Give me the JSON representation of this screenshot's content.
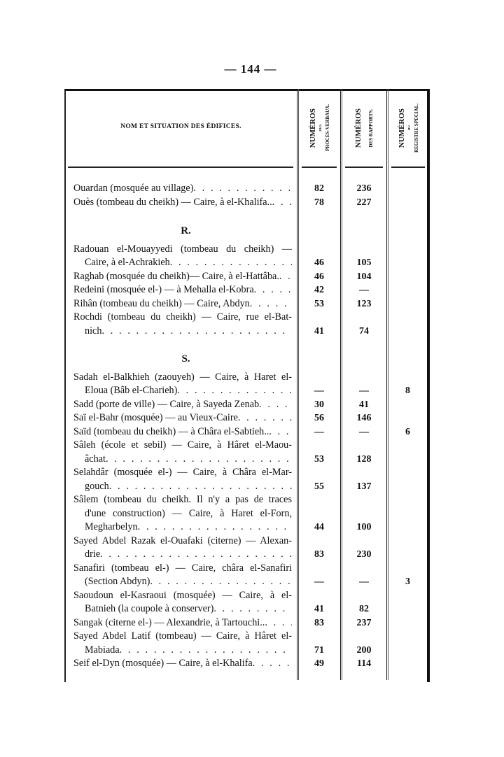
{
  "page_number": "— 144 —",
  "table_header": {
    "name_column": "NOM ET SITUATION DES ÉDIFICES.",
    "col_proces": [
      "NUMÉROS",
      "DES",
      "PROCÈS-VERBAUX."
    ],
    "col_rapports": [
      "NUMÉROS",
      "DES RAPPORTS."
    ],
    "col_registre": [
      "NUMÉROS",
      "DU",
      "REGISTRE SPÉCIAL."
    ]
  },
  "groups": [
    {
      "letter": "",
      "entries": [
        {
          "lines": [
            "Ouardan (mosquée au village)"
          ],
          "proces": "82",
          "rapports": "236",
          "registre": ""
        },
        {
          "lines": [
            "Ouès (tombeau du cheikh) — Caire, à el-Khalifa.."
          ],
          "proces": "78",
          "rapports": "227",
          "registre": ""
        }
      ]
    },
    {
      "letter": "R.",
      "entries": [
        {
          "lines": [
            "Radouan el-Mouayyedi (tombeau du cheikh) —",
            "Caire, à el-Achrakieh"
          ],
          "proces": "46",
          "rapports": "105",
          "registre": ""
        },
        {
          "lines": [
            "Raghab (mosquée du cheikh)— Caire, à el-Hattâba."
          ],
          "proces": "46",
          "rapports": "104",
          "registre": ""
        },
        {
          "lines": [
            "Redeini (mosquée el-) — à Mehalla el-Kobra"
          ],
          "proces": "42",
          "rapports": "—",
          "registre": ""
        },
        {
          "lines": [
            "Rihân (tombeau du cheikh) — Caire, Abdyn"
          ],
          "proces": "53",
          "rapports": "123",
          "registre": ""
        },
        {
          "lines": [
            "Rochdi (tombeau du cheikh) — Caire, rue el-Bat-",
            "nich"
          ],
          "proces": "41",
          "rapports": "74",
          "registre": ""
        }
      ]
    },
    {
      "letter": "S.",
      "entries": [
        {
          "lines": [
            "Sadah el-Balkhieh (zaouyeh) — Caire, à Haret el-",
            "Eloua (Bâb el-Charieh)"
          ],
          "proces": "—",
          "rapports": "—",
          "registre": "8"
        },
        {
          "lines": [
            "Sadd (porte de ville) — Caire, à Sayeda Zenab"
          ],
          "proces": "30",
          "rapports": "41",
          "registre": ""
        },
        {
          "lines": [
            "Saï el-Bahr (mosquée) — au Vieux-Caire"
          ],
          "proces": "56",
          "rapports": "146",
          "registre": ""
        },
        {
          "lines": [
            "Saïd (tombeau du cheikh) — à Châra el-Sabtieh.."
          ],
          "proces": "—",
          "rapports": "—",
          "registre": "6"
        },
        {
          "lines": [
            "Sâleh (école et sebil) — Caire, à Hâret el-Maou-",
            "âchat"
          ],
          "proces": "53",
          "rapports": "128",
          "registre": ""
        },
        {
          "lines": [
            "Selahdâr (mosquée el-) — Caire, à Châra el-Mar-",
            "gouch"
          ],
          "proces": "55",
          "rapports": "137",
          "registre": ""
        },
        {
          "lines": [
            "Sâlem (tombeau du cheikh. Il n'y a pas de traces",
            "d'une construction) — Caire, à Haret el-Forn,",
            "Megharbelyn"
          ],
          "proces": "44",
          "rapports": "100",
          "registre": ""
        },
        {
          "lines": [
            "Sayed Abdel Razak el-Ouafaki (citerne) — Alexan-",
            "drie"
          ],
          "proces": "83",
          "rapports": "230",
          "registre": ""
        },
        {
          "lines": [
            "Sanafiri (tombeau el-) — Caire, châra el-Sanafiri",
            "(Section Abdyn)"
          ],
          "proces": "—",
          "rapports": "—",
          "registre": "3"
        },
        {
          "lines": [
            "Saoudoun el-Kasraoui (mosquée) — Caire, à el-",
            "Batnieh (la coupole à conserver)"
          ],
          "proces": "41",
          "rapports": "82",
          "registre": ""
        },
        {
          "lines": [
            "Sangak (citerne el-) — Alexandrie, à Tartouchi.."
          ],
          "proces": "83",
          "rapports": "237",
          "registre": ""
        },
        {
          "lines": [
            "Sayed Abdel Latif (tombeau) — Caire, à Hâret el-",
            "Mabiada"
          ],
          "proces": "71",
          "rapports": "200",
          "registre": ""
        },
        {
          "lines": [
            "Seif el-Dyn (mosquée) — Caire, à el-Khalifa"
          ],
          "proces": "49",
          "rapports": "114",
          "registre": ""
        }
      ]
    }
  ]
}
